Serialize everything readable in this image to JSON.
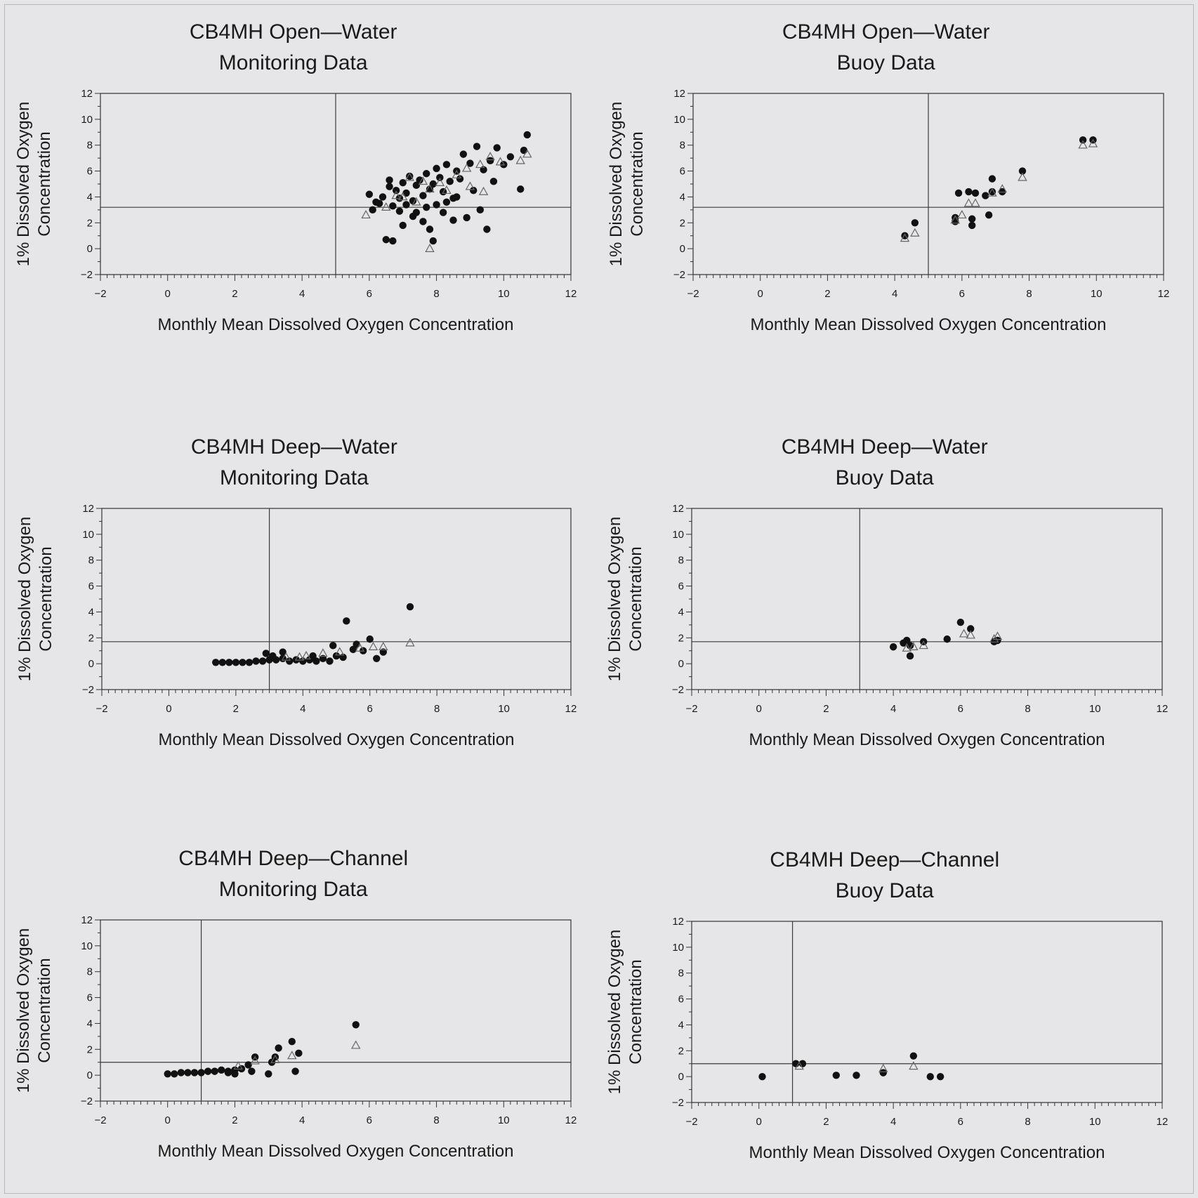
{
  "colors": {
    "background": "#e6e6e8",
    "axes": "#333333",
    "ref_line": "#3a3a3a",
    "filled_marker": "#111111",
    "open_marker": "#666666"
  },
  "chart_data": [
    {
      "type": "scatter",
      "title": [
        "CB4MH Open—Water",
        "Monitoring Data"
      ],
      "xlabel": "Monthly Mean Dissolved Oxygen Concentration",
      "ylabel": [
        "1% Dissolved Oxygen",
        "Concentration"
      ],
      "xlim": [
        -2,
        12
      ],
      "ylim": [
        -2,
        12
      ],
      "xticks": [
        -2,
        0,
        2,
        4,
        6,
        8,
        10,
        12
      ],
      "yticks": [
        -2,
        0,
        2,
        4,
        6,
        8,
        10,
        12
      ],
      "reference_lines": {
        "x": 5,
        "y": 3.2
      },
      "series": [
        {
          "marker": "filled-circle",
          "points": [
            [
              6.0,
              4.2
            ],
            [
              6.1,
              3.0
            ],
            [
              6.3,
              3.5
            ],
            [
              6.4,
              4.0
            ],
            [
              6.6,
              4.8
            ],
            [
              6.7,
              3.3
            ],
            [
              6.8,
              4.5
            ],
            [
              6.9,
              3.9
            ],
            [
              7.0,
              5.1
            ],
            [
              7.1,
              4.3
            ],
            [
              7.2,
              5.6
            ],
            [
              7.3,
              3.7
            ],
            [
              7.4,
              4.9
            ],
            [
              7.5,
              5.3
            ],
            [
              7.6,
              4.1
            ],
            [
              7.7,
              5.8
            ],
            [
              7.8,
              4.6
            ],
            [
              7.9,
              5.0
            ],
            [
              8.0,
              6.2
            ],
            [
              8.1,
              5.5
            ],
            [
              8.2,
              4.4
            ],
            [
              8.3,
              6.5
            ],
            [
              8.4,
              5.2
            ],
            [
              8.5,
              3.9
            ],
            [
              8.6,
              6.0
            ],
            [
              8.7,
              5.4
            ],
            [
              8.8,
              7.3
            ],
            [
              9.0,
              6.6
            ],
            [
              9.2,
              7.9
            ],
            [
              9.4,
              6.1
            ],
            [
              9.6,
              6.8
            ],
            [
              9.8,
              7.8
            ],
            [
              10.0,
              6.5
            ],
            [
              10.2,
              7.1
            ],
            [
              10.5,
              4.6
            ],
            [
              10.6,
              7.6
            ],
            [
              10.7,
              8.8
            ],
            [
              6.5,
              0.7
            ],
            [
              6.7,
              0.6
            ],
            [
              7.0,
              1.8
            ],
            [
              7.3,
              2.5
            ],
            [
              7.6,
              2.1
            ],
            [
              7.8,
              1.5
            ],
            [
              7.9,
              0.6
            ],
            [
              8.2,
              2.8
            ],
            [
              8.5,
              2.2
            ],
            [
              8.9,
              2.4
            ],
            [
              9.3,
              3.0
            ],
            [
              9.5,
              1.5
            ],
            [
              6.2,
              3.6
            ],
            [
              6.9,
              2.9
            ],
            [
              7.1,
              3.4
            ],
            [
              7.4,
              2.8
            ],
            [
              7.7,
              3.2
            ],
            [
              8.0,
              3.4
            ],
            [
              8.3,
              3.6
            ],
            [
              8.6,
              4.0
            ],
            [
              9.1,
              4.5
            ],
            [
              9.7,
              5.2
            ],
            [
              6.6,
              5.3
            ]
          ]
        },
        {
          "marker": "open-triangle",
          "points": [
            [
              5.9,
              2.6
            ],
            [
              6.5,
              3.2
            ],
            [
              7.0,
              4.0
            ],
            [
              7.4,
              3.6
            ],
            [
              7.8,
              4.6
            ],
            [
              8.1,
              5.1
            ],
            [
              8.3,
              4.5
            ],
            [
              8.6,
              5.7
            ],
            [
              9.0,
              4.8
            ],
            [
              9.3,
              6.5
            ],
            [
              9.4,
              4.4
            ],
            [
              9.6,
              7.1
            ],
            [
              9.9,
              6.7
            ],
            [
              10.5,
              6.8
            ],
            [
              10.7,
              7.3
            ],
            [
              7.8,
              0.0
            ],
            [
              8.9,
              6.2
            ],
            [
              7.2,
              5.5
            ],
            [
              6.8,
              4.1
            ],
            [
              7.6,
              5.2
            ]
          ]
        }
      ]
    },
    {
      "type": "scatter",
      "title": [
        "CB4MH Open—Water",
        "Buoy Data"
      ],
      "xlabel": "Monthly Mean Dissolved Oxygen Concentration",
      "ylabel": [
        "1% Dissolved Oxygen",
        "Concentration"
      ],
      "xlim": [
        -2,
        12
      ],
      "ylim": [
        -2,
        12
      ],
      "xticks": [
        -2,
        0,
        2,
        4,
        6,
        8,
        10,
        12
      ],
      "yticks": [
        -2,
        0,
        2,
        4,
        6,
        8,
        10,
        12
      ],
      "reference_lines": {
        "x": 5,
        "y": 3.2
      },
      "series": [
        {
          "marker": "filled-circle",
          "points": [
            [
              4.3,
              1.0
            ],
            [
              4.6,
              2.0
            ],
            [
              5.8,
              2.1
            ],
            [
              5.8,
              2.4
            ],
            [
              5.9,
              4.3
            ],
            [
              6.2,
              4.4
            ],
            [
              6.3,
              1.8
            ],
            [
              6.3,
              2.3
            ],
            [
              6.4,
              4.3
            ],
            [
              6.7,
              4.1
            ],
            [
              6.8,
              2.6
            ],
            [
              6.9,
              4.4
            ],
            [
              6.9,
              5.4
            ],
            [
              7.2,
              4.4
            ],
            [
              7.8,
              6.0
            ],
            [
              9.6,
              8.4
            ],
            [
              9.9,
              8.4
            ]
          ]
        },
        {
          "marker": "open-triangle",
          "points": [
            [
              4.3,
              0.8
            ],
            [
              4.6,
              1.2
            ],
            [
              5.8,
              2.2
            ],
            [
              6.0,
              2.6
            ],
            [
              6.2,
              3.5
            ],
            [
              6.4,
              3.5
            ],
            [
              6.9,
              4.3
            ],
            [
              7.2,
              4.6
            ],
            [
              7.8,
              5.5
            ],
            [
              9.6,
              8.0
            ],
            [
              9.9,
              8.1
            ]
          ]
        }
      ]
    },
    {
      "type": "scatter",
      "title": [
        "CB4MH Deep—Water",
        "Monitoring Data"
      ],
      "xlabel": "Monthly Mean Dissolved Oxygen Concentration",
      "ylabel": [
        "1% Dissolved Oxygen",
        "Concentration"
      ],
      "xlim": [
        -2,
        12
      ],
      "ylim": [
        -2,
        12
      ],
      "xticks": [
        -2,
        0,
        2,
        4,
        6,
        8,
        10,
        12
      ],
      "yticks": [
        -2,
        0,
        2,
        4,
        6,
        8,
        10,
        12
      ],
      "reference_lines": {
        "x": 3,
        "y": 1.7
      },
      "series": [
        {
          "marker": "filled-circle",
          "points": [
            [
              1.4,
              0.1
            ],
            [
              1.6,
              0.1
            ],
            [
              1.8,
              0.1
            ],
            [
              2.0,
              0.1
            ],
            [
              2.2,
              0.1
            ],
            [
              2.4,
              0.1
            ],
            [
              2.6,
              0.2
            ],
            [
              2.8,
              0.2
            ],
            [
              3.0,
              0.3
            ],
            [
              3.2,
              0.3
            ],
            [
              3.4,
              0.4
            ],
            [
              3.6,
              0.2
            ],
            [
              3.8,
              0.3
            ],
            [
              4.0,
              0.2
            ],
            [
              4.2,
              0.3
            ],
            [
              4.4,
              0.2
            ],
            [
              4.6,
              0.4
            ],
            [
              4.8,
              0.2
            ],
            [
              5.0,
              0.6
            ],
            [
              5.2,
              0.5
            ],
            [
              4.9,
              1.4
            ],
            [
              5.3,
              3.3
            ],
            [
              5.6,
              1.5
            ],
            [
              5.8,
              1.0
            ],
            [
              6.0,
              1.9
            ],
            [
              6.2,
              0.4
            ],
            [
              6.4,
              0.9
            ],
            [
              7.2,
              4.4
            ],
            [
              2.9,
              0.8
            ],
            [
              3.4,
              0.9
            ],
            [
              3.1,
              0.6
            ],
            [
              4.3,
              0.6
            ],
            [
              5.5,
              1.1
            ]
          ]
        },
        {
          "marker": "open-triangle",
          "points": [
            [
              3.5,
              0.5
            ],
            [
              4.1,
              0.6
            ],
            [
              4.6,
              0.8
            ],
            [
              5.1,
              0.9
            ],
            [
              5.7,
              1.2
            ],
            [
              6.1,
              1.3
            ],
            [
              6.4,
              1.3
            ],
            [
              7.2,
              1.6
            ],
            [
              3.9,
              0.5
            ]
          ]
        }
      ]
    },
    {
      "type": "scatter",
      "title": [
        "CB4MH Deep—Water",
        "Buoy Data"
      ],
      "xlabel": "Monthly Mean Dissolved Oxygen Concentration",
      "ylabel": [
        "1% Dissolved Oxygen",
        "Concentration"
      ],
      "xlim": [
        -2,
        12
      ],
      "ylim": [
        -2,
        12
      ],
      "xticks": [
        -2,
        0,
        2,
        4,
        6,
        8,
        10,
        12
      ],
      "yticks": [
        -2,
        0,
        2,
        4,
        6,
        8,
        10,
        12
      ],
      "reference_lines": {
        "x": 3,
        "y": 1.7
      },
      "series": [
        {
          "marker": "filled-circle",
          "points": [
            [
              4.0,
              1.3
            ],
            [
              4.3,
              1.6
            ],
            [
              4.4,
              1.8
            ],
            [
              4.5,
              0.6
            ],
            [
              4.5,
              1.4
            ],
            [
              4.9,
              1.7
            ],
            [
              5.6,
              1.9
            ],
            [
              6.0,
              3.2
            ],
            [
              6.3,
              2.7
            ],
            [
              7.0,
              1.7
            ],
            [
              7.1,
              1.8
            ]
          ]
        },
        {
          "marker": "open-triangle",
          "points": [
            [
              4.4,
              1.2
            ],
            [
              4.6,
              1.3
            ],
            [
              4.9,
              1.4
            ],
            [
              6.1,
              2.3
            ],
            [
              6.3,
              2.2
            ],
            [
              7.1,
              2.1
            ],
            [
              7.0,
              1.9
            ]
          ]
        }
      ]
    },
    {
      "type": "scatter",
      "title": [
        "CB4MH Deep—Channel",
        "Monitoring Data"
      ],
      "xlabel": "Monthly Mean Dissolved Oxygen Concentration",
      "ylabel": [
        "1% Dissolved Oxygen",
        "Concentration"
      ],
      "xlim": [
        -2,
        12
      ],
      "ylim": [
        -2,
        12
      ],
      "xticks": [
        -2,
        0,
        2,
        4,
        6,
        8,
        10,
        12
      ],
      "yticks": [
        -2,
        0,
        2,
        4,
        6,
        8,
        10,
        12
      ],
      "reference_lines": {
        "x": 1,
        "y": 1.0
      },
      "series": [
        {
          "marker": "filled-circle",
          "points": [
            [
              0.0,
              0.1
            ],
            [
              0.2,
              0.1
            ],
            [
              0.4,
              0.2
            ],
            [
              0.6,
              0.2
            ],
            [
              0.8,
              0.2
            ],
            [
              1.0,
              0.2
            ],
            [
              1.2,
              0.3
            ],
            [
              1.4,
              0.3
            ],
            [
              1.6,
              0.4
            ],
            [
              1.8,
              0.3
            ],
            [
              2.0,
              0.4
            ],
            [
              2.2,
              0.5
            ],
            [
              2.4,
              0.8
            ],
            [
              2.5,
              0.3
            ],
            [
              2.6,
              1.4
            ],
            [
              3.0,
              0.1
            ],
            [
              3.1,
              1.0
            ],
            [
              3.2,
              1.4
            ],
            [
              3.3,
              2.1
            ],
            [
              3.7,
              2.6
            ],
            [
              3.8,
              0.3
            ],
            [
              3.9,
              1.7
            ],
            [
              5.6,
              3.9
            ],
            [
              2.0,
              0.1
            ],
            [
              1.8,
              0.2
            ]
          ]
        },
        {
          "marker": "open-triangle",
          "points": [
            [
              2.1,
              0.7
            ],
            [
              2.6,
              1.1
            ],
            [
              3.2,
              1.2
            ],
            [
              3.7,
              1.5
            ],
            [
              5.6,
              2.3
            ]
          ]
        }
      ]
    },
    {
      "type": "scatter",
      "title": [
        "CB4MH Deep—Channel",
        "Buoy Data"
      ],
      "xlabel": "Monthly Mean Dissolved Oxygen Concentration",
      "ylabel": [
        "1% Dissolved Oxygen",
        "Concentration"
      ],
      "xlim": [
        -2,
        12
      ],
      "ylim": [
        -2,
        12
      ],
      "xticks": [
        -2,
        0,
        2,
        4,
        6,
        8,
        10,
        12
      ],
      "yticks": [
        -2,
        0,
        2,
        4,
        6,
        8,
        10,
        12
      ],
      "reference_lines": {
        "x": 1,
        "y": 1.0
      },
      "series": [
        {
          "marker": "filled-circle",
          "points": [
            [
              0.1,
              0.0
            ],
            [
              1.1,
              1.0
            ],
            [
              1.3,
              1.0
            ],
            [
              2.3,
              0.1
            ],
            [
              2.9,
              0.1
            ],
            [
              3.7,
              0.3
            ],
            [
              4.6,
              1.6
            ],
            [
              5.1,
              0.0
            ],
            [
              5.4,
              0.0
            ]
          ]
        },
        {
          "marker": "open-triangle",
          "points": [
            [
              1.2,
              0.8
            ],
            [
              3.7,
              0.6
            ],
            [
              4.6,
              0.8
            ]
          ]
        }
      ]
    }
  ]
}
